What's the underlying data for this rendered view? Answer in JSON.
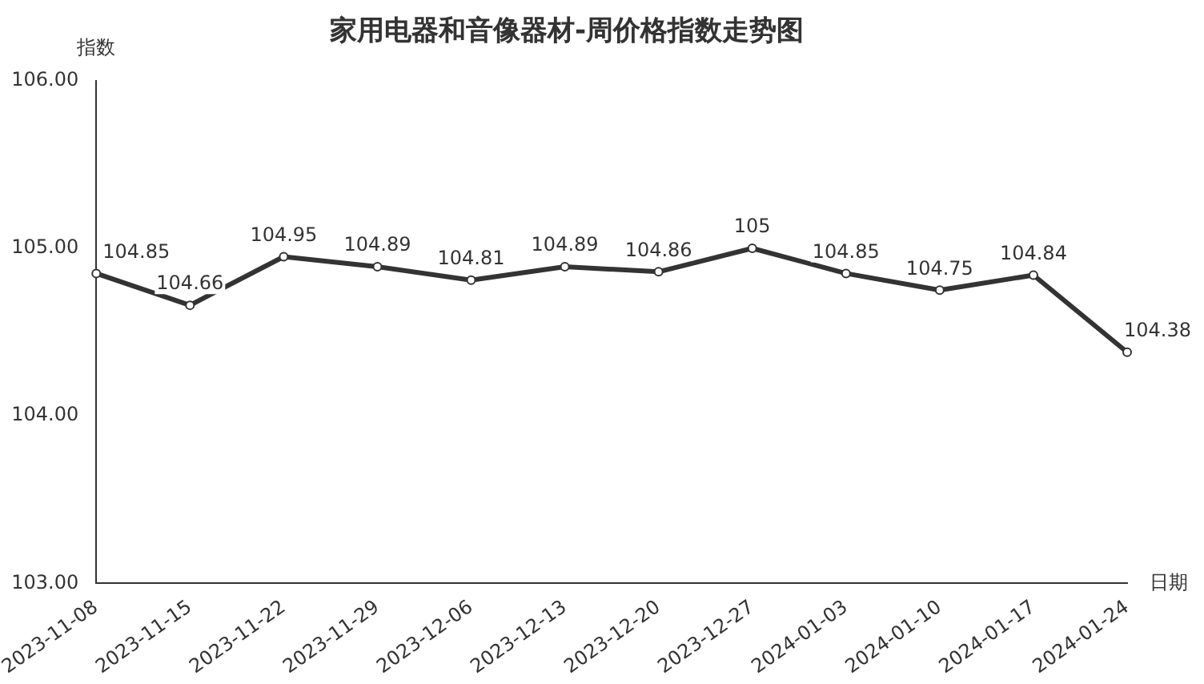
{
  "chart_data": {
    "type": "line",
    "title": "家用电器和音像器材-周价格指数走势图",
    "xlabel": "日期",
    "ylabel": "指数",
    "categories": [
      "2023-11-08",
      "2023-11-15",
      "2023-11-22",
      "2023-11-29",
      "2023-12-06",
      "2023-12-13",
      "2023-12-20",
      "2023-12-27",
      "2024-01-03",
      "2024-01-10",
      "2024-01-17",
      "2024-01-24"
    ],
    "series": [
      {
        "color": "#333333",
        "values": [
          104.85,
          104.66,
          104.95,
          104.89,
          104.81,
          104.89,
          104.86,
          105,
          104.85,
          104.75,
          104.84,
          104.38
        ]
      }
    ],
    "ylim": [
      103,
      106
    ],
    "yticks": [
      {
        "value": 103,
        "label": "103.00"
      },
      {
        "value": 104,
        "label": "104.00"
      },
      {
        "value": 105,
        "label": "105.00"
      },
      {
        "value": 106,
        "label": "106.00"
      }
    ],
    "data_labels": true,
    "marker": "circle",
    "line_style": "solid",
    "legend": false,
    "grid": false
  }
}
